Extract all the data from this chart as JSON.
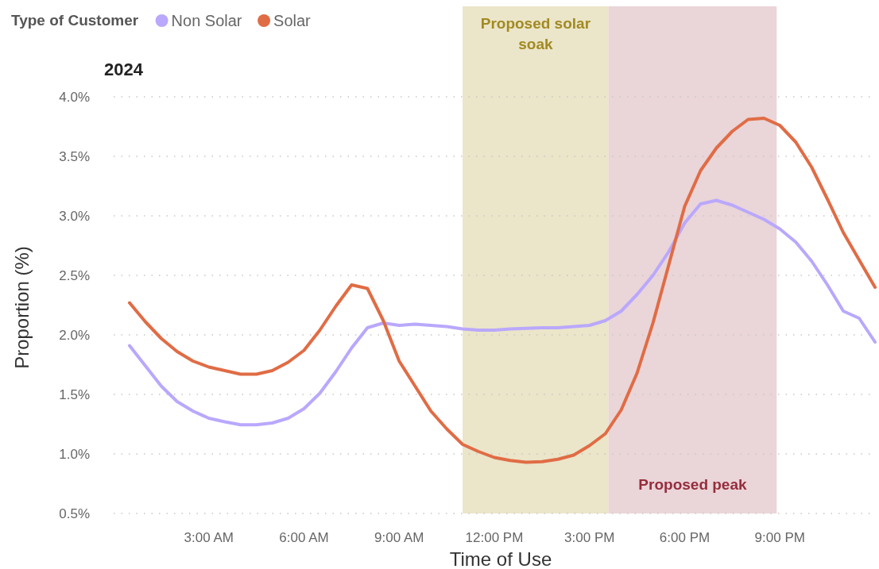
{
  "chart_data": {
    "type": "line",
    "title": "2024",
    "xlabel": "Time of Use",
    "ylabel": "Proportion (%)",
    "legend_title": "Type of Customer",
    "legend": "top left",
    "grid": "y",
    "x": [
      0.5,
      1,
      1.5,
      2,
      2.5,
      3,
      3.5,
      4,
      4.5,
      5,
      5.5,
      6,
      6.5,
      7,
      7.5,
      8,
      8.5,
      9,
      9.5,
      10,
      10.5,
      11,
      11.5,
      12,
      12.5,
      13,
      13.5,
      14,
      14.5,
      15,
      15.5,
      16,
      16.5,
      17,
      17.5,
      18,
      18.5,
      19,
      19.5,
      20,
      20.5,
      21,
      21.5,
      22,
      22.5,
      23,
      23.5,
      24
    ],
    "xlim": [
      0,
      24
    ],
    "xticks": [
      {
        "value": 3,
        "label": "3:00 AM"
      },
      {
        "value": 6,
        "label": "6:00 AM"
      },
      {
        "value": 9,
        "label": "9:00 AM"
      },
      {
        "value": 12,
        "label": "12:00 PM"
      },
      {
        "value": 15,
        "label": "3:00 PM"
      },
      {
        "value": 18,
        "label": "6:00 PM"
      },
      {
        "value": 21,
        "label": "9:00 PM"
      }
    ],
    "ylim": [
      0.5,
      4.0
    ],
    "yticks": [
      {
        "value": 0.5,
        "label": "0.5%"
      },
      {
        "value": 1,
        "label": "1.0%"
      },
      {
        "value": 1.5,
        "label": "1.5%"
      },
      {
        "value": 2,
        "label": "2.0%"
      },
      {
        "value": 2.5,
        "label": "2.5%"
      },
      {
        "value": 3,
        "label": "3.0%"
      },
      {
        "value": 3.5,
        "label": "3.5%"
      },
      {
        "value": 4,
        "label": "4.0%"
      }
    ],
    "series": [
      {
        "name": "Non Solar",
        "color": "#b9a8fc",
        "values": [
          1.91,
          1.74,
          1.57,
          1.44,
          1.36,
          1.3,
          1.27,
          1.245,
          1.245,
          1.26,
          1.3,
          1.38,
          1.51,
          1.69,
          1.89,
          2.06,
          2.1,
          2.08,
          2.09,
          2.08,
          2.07,
          2.05,
          2.04,
          2.04,
          2.05,
          2.055,
          2.06,
          2.06,
          2.07,
          2.08,
          2.12,
          2.2,
          2.34,
          2.5,
          2.7,
          2.94,
          3.1,
          3.13,
          3.09,
          3.03,
          2.97,
          2.89,
          2.78,
          2.62,
          2.42,
          2.2,
          2.14,
          1.94
        ]
      },
      {
        "name": "Solar",
        "color": "#e06c45",
        "values": [
          2.27,
          2.11,
          1.97,
          1.86,
          1.78,
          1.73,
          1.7,
          1.67,
          1.67,
          1.7,
          1.77,
          1.87,
          2.04,
          2.24,
          2.42,
          2.39,
          2.12,
          1.78,
          1.57,
          1.36,
          1.21,
          1.08,
          1.02,
          0.97,
          0.945,
          0.93,
          0.935,
          0.955,
          0.99,
          1.07,
          1.17,
          1.37,
          1.68,
          2.1,
          2.59,
          3.08,
          3.38,
          3.57,
          3.71,
          3.81,
          3.82,
          3.76,
          3.62,
          3.41,
          3.14,
          2.86,
          2.63,
          2.4
        ]
      }
    ],
    "bands": [
      {
        "axis": "x",
        "from": 11,
        "to": 15.6,
        "label": "Proposed solar soak",
        "color": "#ebe5c9"
      },
      {
        "axis": "x",
        "from": 15.6,
        "to": 20.9,
        "label": "Proposed peak",
        "color": "#ead5d8"
      }
    ]
  }
}
